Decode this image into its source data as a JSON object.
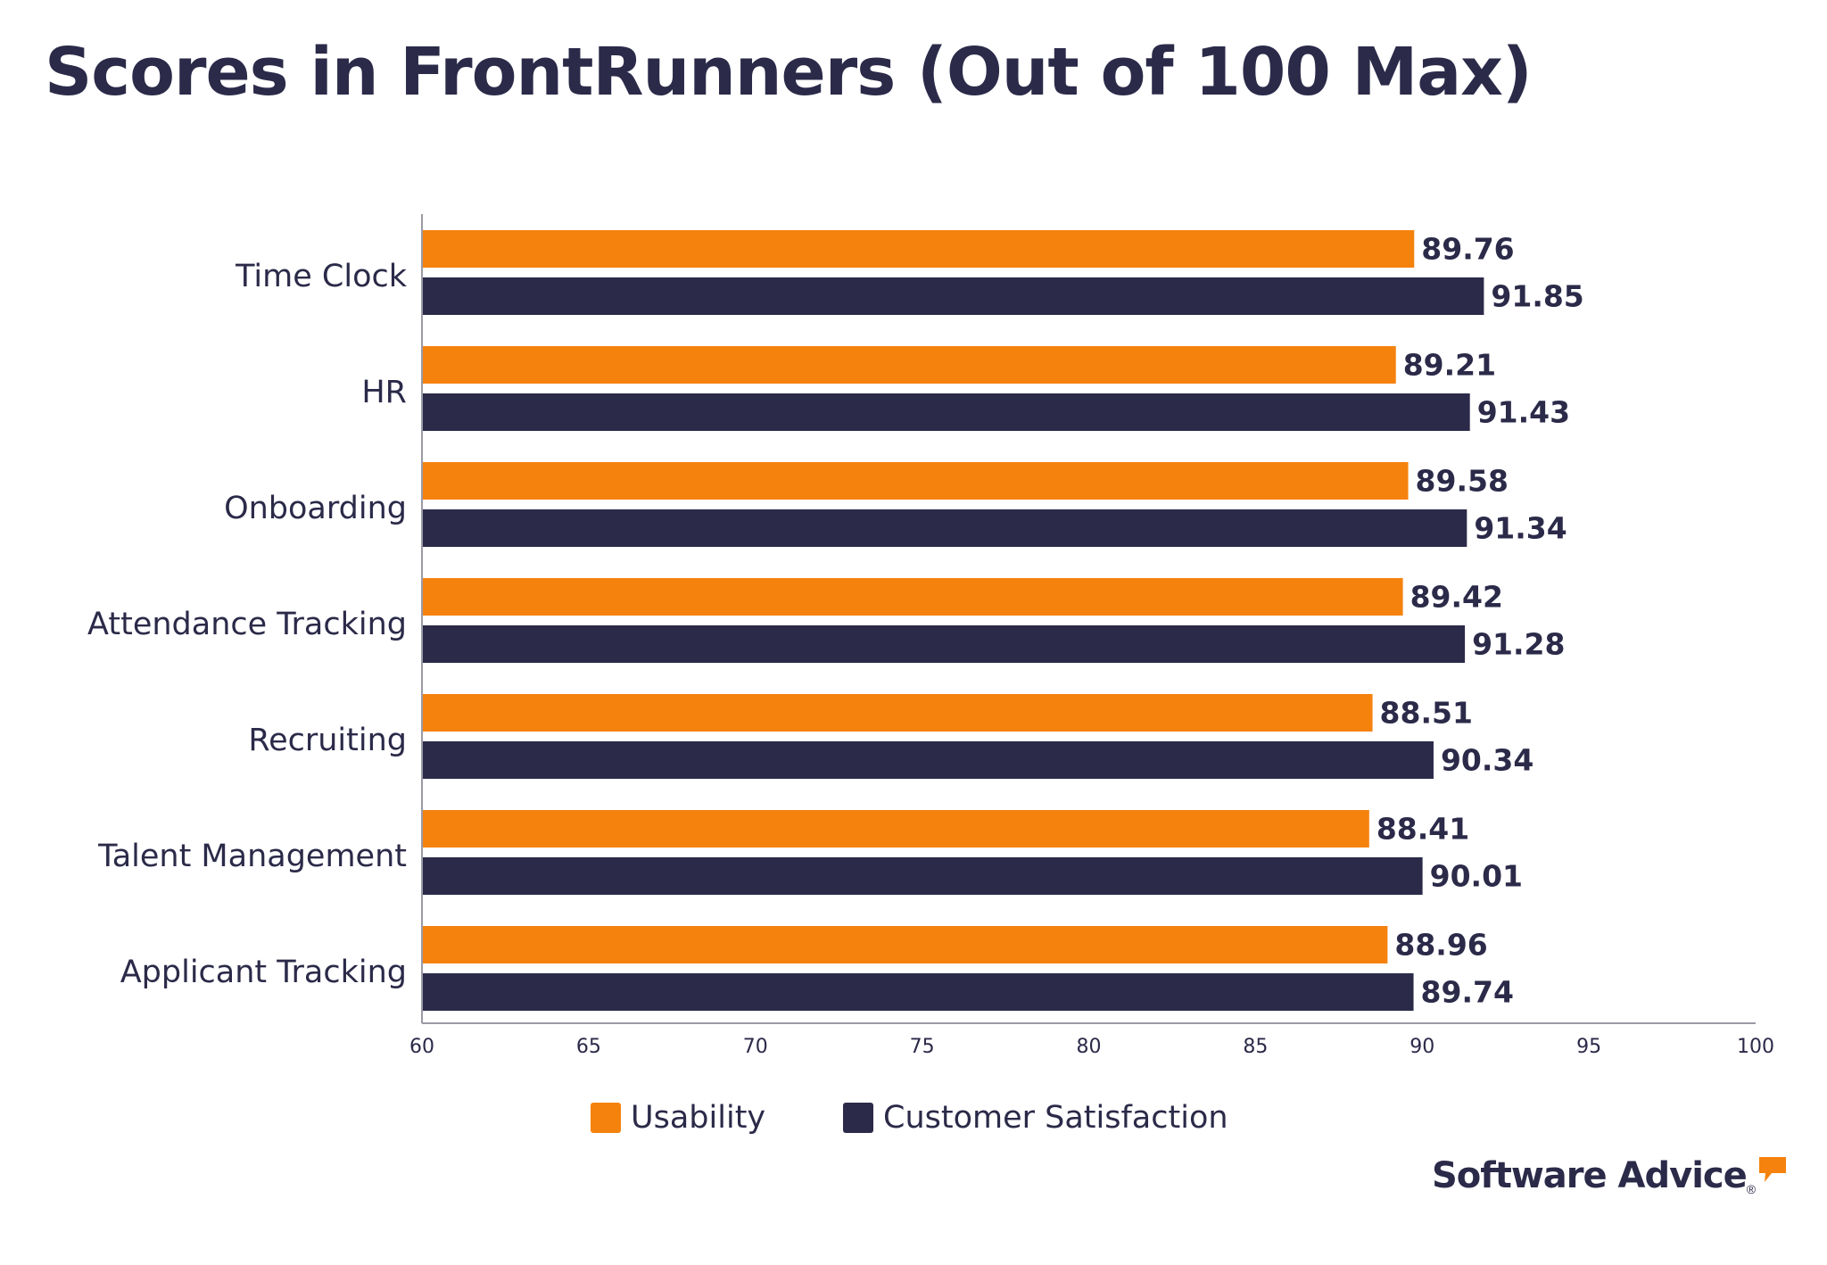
{
  "title": "Scores in FrontRunners (Out of 100 Max)",
  "chart_data": {
    "type": "bar",
    "orientation": "horizontal",
    "title": "Scores in FrontRunners (Out of 100 Max)",
    "xlabel": "",
    "ylabel": "",
    "categories": [
      "Time Clock",
      "HR",
      "Onboarding",
      "Attendance Tracking",
      "Recruiting",
      "Talent Management",
      "Applicant Tracking"
    ],
    "series": [
      {
        "name": "Usability",
        "color": "#f5820d",
        "values": [
          89.76,
          89.21,
          89.58,
          89.42,
          88.51,
          88.41,
          88.96
        ]
      },
      {
        "name": "Customer Satisfaction",
        "color": "#2b2a49",
        "values": [
          91.85,
          91.43,
          91.34,
          91.28,
          90.34,
          90.01,
          89.74
        ]
      }
    ],
    "xlim": [
      60,
      100
    ],
    "xticks": [
      60,
      65,
      70,
      75,
      80,
      85,
      90,
      95,
      100
    ],
    "grid": false,
    "legend_position": "bottom-center",
    "data_labels": true
  },
  "brand": {
    "name": "Software Advice",
    "mark": "®",
    "accent_color": "#f5820d",
    "icon": "speech-bubble-icon"
  }
}
